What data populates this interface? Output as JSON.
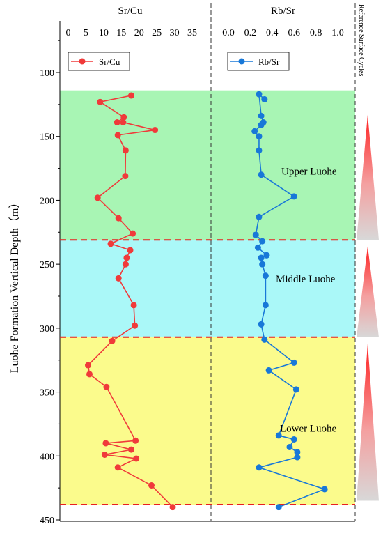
{
  "chart_data": {
    "type": "line",
    "ylabel": "Luohe Formation Vertical Depth（m）",
    "y_inverted": true,
    "ylim": [
      70,
      455
    ],
    "yticks": [
      100,
      150,
      200,
      250,
      300,
      350,
      400,
      450
    ],
    "panels": [
      {
        "title": "Sr/Cu",
        "xlim": [
          0,
          35
        ],
        "xticks": [
          0,
          5,
          10,
          15,
          20,
          25,
          30,
          35
        ],
        "legend": "top-left",
        "series": [
          {
            "name": "Sr/Cu",
            "color": "#f03a3a",
            "marker": "circle",
            "points": [
              {
                "x": 17.8,
                "y": 118
              },
              {
                "x": 9.0,
                "y": 123
              },
              {
                "x": 15.7,
                "y": 135
              },
              {
                "x": 13.8,
                "y": 139
              },
              {
                "x": 15.5,
                "y": 139
              },
              {
                "x": 24.5,
                "y": 145
              },
              {
                "x": 14.0,
                "y": 149
              },
              {
                "x": 16.2,
                "y": 161
              },
              {
                "x": 16.1,
                "y": 181
              },
              {
                "x": 8.3,
                "y": 198
              },
              {
                "x": 14.2,
                "y": 214
              },
              {
                "x": 18.2,
                "y": 226
              },
              {
                "x": 12.0,
                "y": 234
              },
              {
                "x": 17.5,
                "y": 239
              },
              {
                "x": 16.5,
                "y": 245
              },
              {
                "x": 16.2,
                "y": 250
              },
              {
                "x": 14.2,
                "y": 261
              },
              {
                "x": 18.5,
                "y": 282
              },
              {
                "x": 18.8,
                "y": 298
              },
              {
                "x": 12.4,
                "y": 310
              },
              {
                "x": 5.6,
                "y": 329
              },
              {
                "x": 6.0,
                "y": 336
              },
              {
                "x": 10.8,
                "y": 346
              },
              {
                "x": 19.0,
                "y": 388
              },
              {
                "x": 10.6,
                "y": 390
              },
              {
                "x": 17.8,
                "y": 395
              },
              {
                "x": 10.3,
                "y": 399
              },
              {
                "x": 19.2,
                "y": 402
              },
              {
                "x": 14.0,
                "y": 409
              },
              {
                "x": 23.5,
                "y": 423
              },
              {
                "x": 29.5,
                "y": 440
              }
            ]
          }
        ]
      },
      {
        "title": "Rb/Sr",
        "xlim": [
          0.0,
          1.0
        ],
        "xticks": [
          "0.0",
          "0.2",
          "0.4",
          "0.6",
          "0.8",
          "1.0"
        ],
        "legend": "top-left",
        "series": [
          {
            "name": "Rb/Sr",
            "color": "#1878d8",
            "marker": "circle",
            "points": [
              {
                "x": 0.33,
                "y": 121
              },
              {
                "x": 0.28,
                "y": 117
              },
              {
                "x": 0.3,
                "y": 134
              },
              {
                "x": 0.32,
                "y": 139
              },
              {
                "x": 0.3,
                "y": 141
              },
              {
                "x": 0.24,
                "y": 146
              },
              {
                "x": 0.28,
                "y": 150
              },
              {
                "x": 0.28,
                "y": 161
              },
              {
                "x": 0.3,
                "y": 180
              },
              {
                "x": 0.6,
                "y": 197
              },
              {
                "x": 0.28,
                "y": 213
              },
              {
                "x": 0.25,
                "y": 227
              },
              {
                "x": 0.31,
                "y": 232
              },
              {
                "x": 0.27,
                "y": 237
              },
              {
                "x": 0.35,
                "y": 243
              },
              {
                "x": 0.3,
                "y": 245
              },
              {
                "x": 0.31,
                "y": 250
              },
              {
                "x": 0.34,
                "y": 259
              },
              {
                "x": 0.34,
                "y": 282
              },
              {
                "x": 0.3,
                "y": 297
              },
              {
                "x": 0.33,
                "y": 309
              },
              {
                "x": 0.6,
                "y": 327
              },
              {
                "x": 0.37,
                "y": 333
              },
              {
                "x": 0.62,
                "y": 348
              },
              {
                "x": 0.46,
                "y": 384
              },
              {
                "x": 0.6,
                "y": 387
              },
              {
                "x": 0.56,
                "y": 393
              },
              {
                "x": 0.63,
                "y": 397
              },
              {
                "x": 0.63,
                "y": 401
              },
              {
                "x": 0.28,
                "y": 409
              },
              {
                "x": 0.88,
                "y": 426
              },
              {
                "x": 0.46,
                "y": 440
              }
            ]
          }
        ]
      }
    ],
    "zones": [
      {
        "label": "Upper Luohe",
        "top": 114,
        "bottom": 231,
        "color": "#a8f5b4"
      },
      {
        "label": "Middle Luohe",
        "top": 231,
        "bottom": 307,
        "color": "#aaf8f8"
      },
      {
        "label": "Lower Luohe",
        "top": 307,
        "bottom": 438,
        "color": "#fbfb8c"
      }
    ],
    "boundaries": [
      231,
      307,
      438
    ],
    "side_column": {
      "title": "Reference Surface Cycles",
      "triangles": [
        {
          "top": 133,
          "bottom": 231
        },
        {
          "top": 236,
          "bottom": 307
        },
        {
          "top": 312,
          "bottom": 435
        }
      ]
    }
  }
}
